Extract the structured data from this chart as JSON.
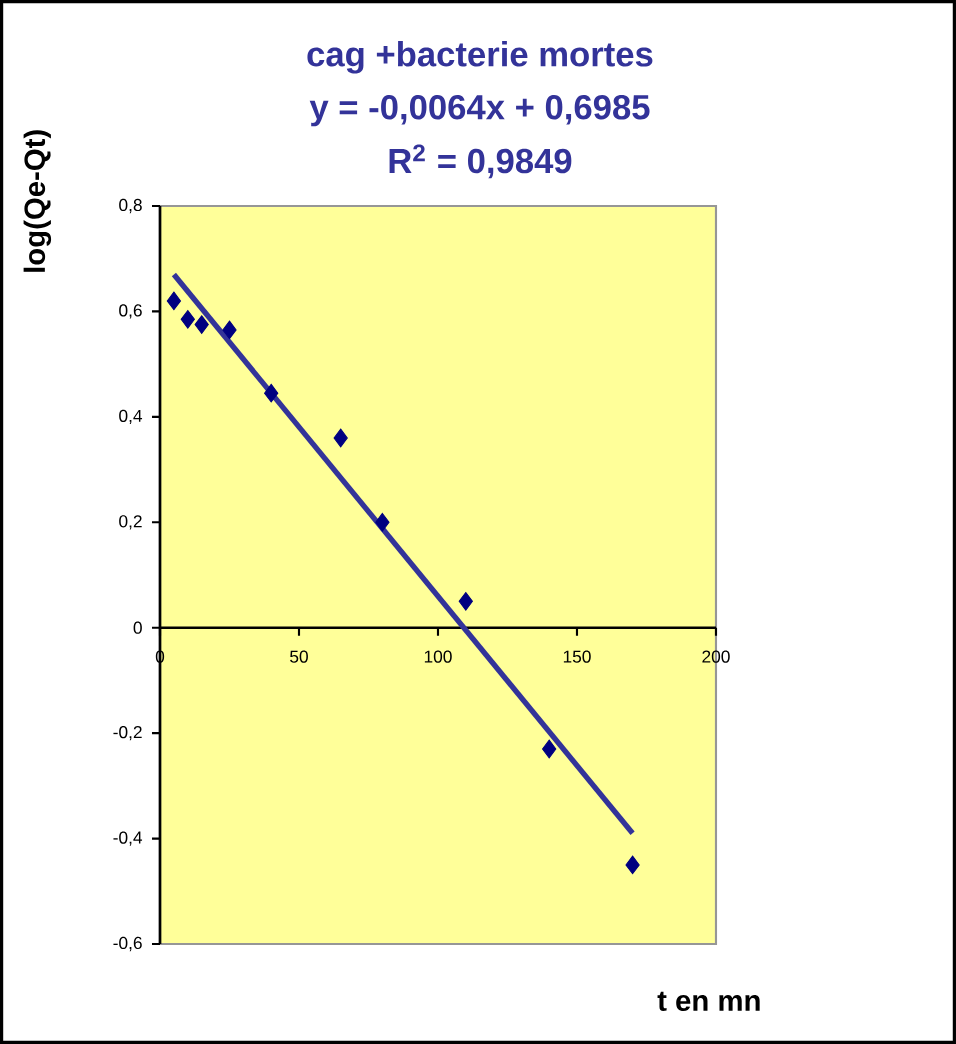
{
  "chart_data": {
    "type": "scatter",
    "title": "cag +bacterie mortes",
    "xlabel": "t en mn",
    "ylabel": "log(Qe-Qt)",
    "annotations": [
      "y = -0,0064x + 0,6985",
      "R$^{2}$ = 0,9849"
    ],
    "xlim": [
      0,
      200
    ],
    "ylim": [
      -0.6,
      0.8
    ],
    "xticks": [
      {
        "value": 0,
        "label": "0"
      },
      {
        "value": 50,
        "label": "50"
      },
      {
        "value": 100,
        "label": "100"
      },
      {
        "value": 150,
        "label": "150"
      },
      {
        "value": 200,
        "label": "200"
      }
    ],
    "yticks": [
      {
        "value": -0.6,
        "label": "-0,6"
      },
      {
        "value": -0.4,
        "label": "-0,4"
      },
      {
        "value": -0.2,
        "label": "-0,2"
      },
      {
        "value": 0,
        "label": "0"
      },
      {
        "value": 0.2,
        "label": "0,2"
      },
      {
        "value": 0.4,
        "label": "0,4"
      },
      {
        "value": 0.6,
        "label": "0,6"
      },
      {
        "value": 0.8,
        "label": "0,8"
      }
    ],
    "marker": "diamond",
    "series": [
      {
        "color": "#000080",
        "x": [
          5,
          10,
          15,
          25,
          40,
          65,
          80,
          110,
          140,
          170
        ],
        "values": [
          0.62,
          0.585,
          0.575,
          0.565,
          0.445,
          0.36,
          0.2,
          0.05,
          -0.23,
          -0.45
        ]
      },
      {
        "type": "line",
        "marker": "none",
        "color": "#333399",
        "line_style": "solid",
        "x": [
          5,
          170
        ],
        "values": [
          0.67,
          -0.39
        ]
      }
    ]
  }
}
